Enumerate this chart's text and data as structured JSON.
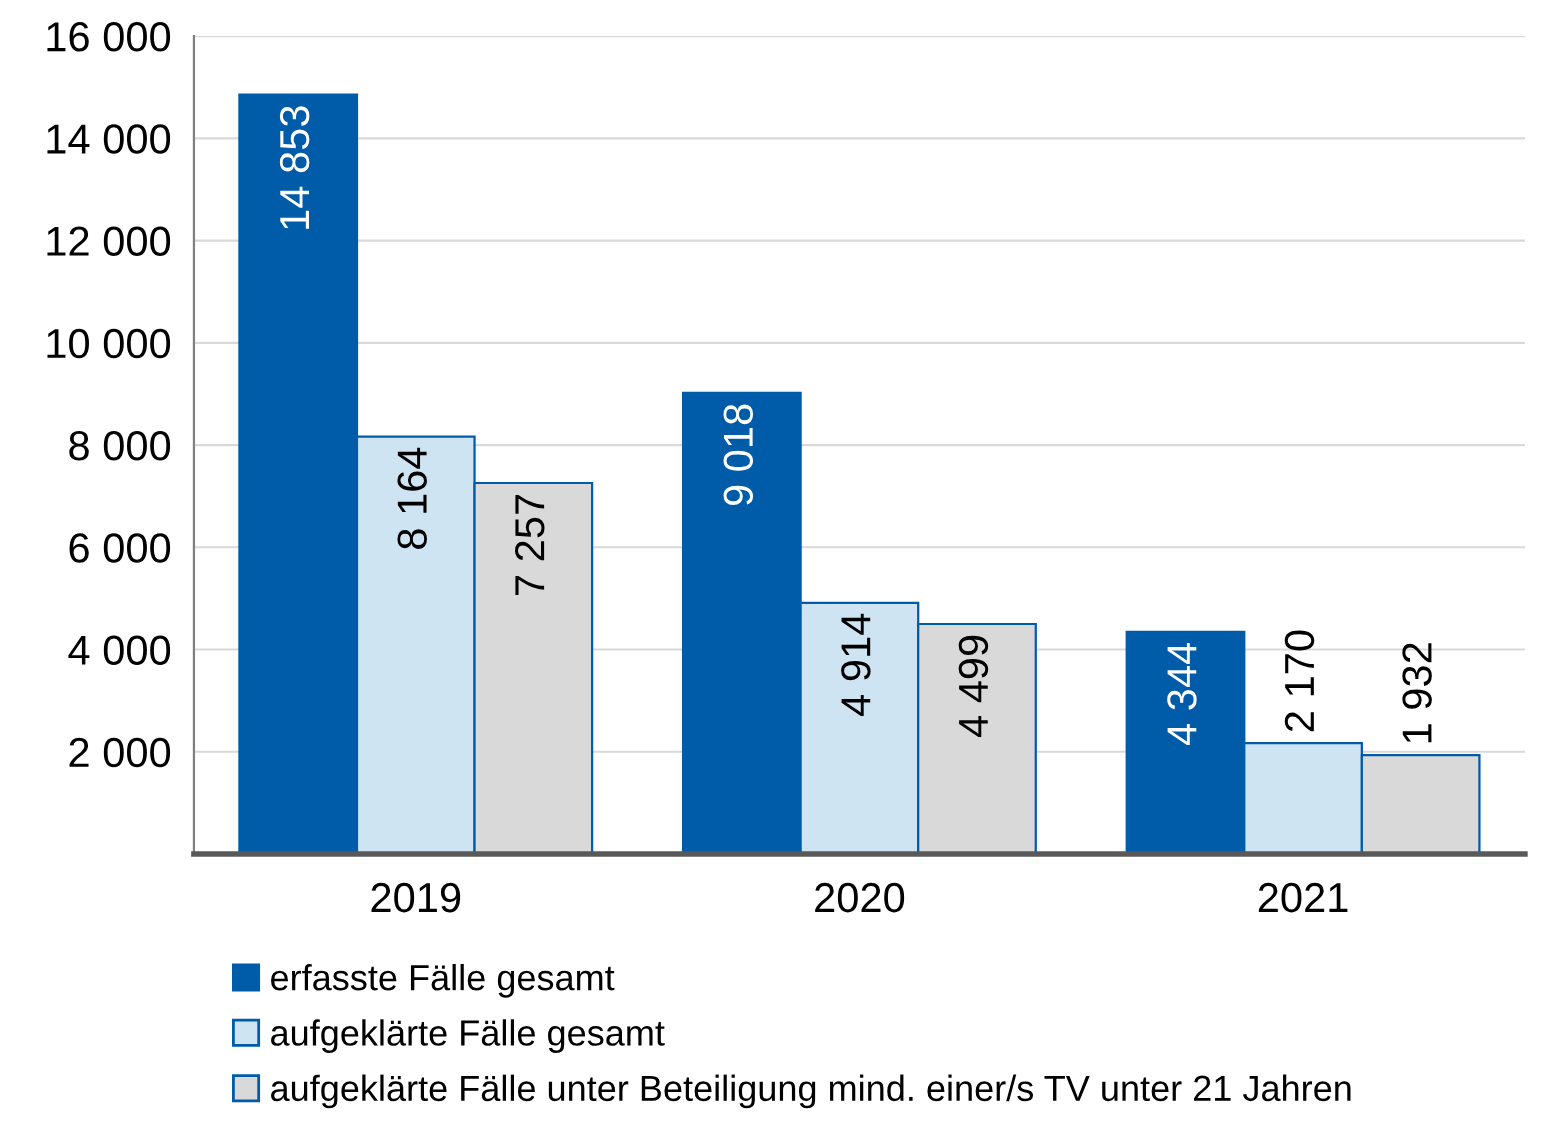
{
  "chart_data": {
    "type": "bar",
    "categories": [
      "2019",
      "2020",
      "2021"
    ],
    "series": [
      {
        "name": "erfasste Fälle gesamt",
        "color": "#005ca9",
        "values": [
          14853,
          9018,
          4344
        ],
        "value_labels": [
          "14 853",
          "9 018",
          "4 344"
        ]
      },
      {
        "name": "aufgeklärte Fälle gesamt",
        "color": "#cfe4f2",
        "values": [
          8164,
          4914,
          2170
        ],
        "value_labels": [
          "8 164",
          "4 914",
          "2 170"
        ]
      },
      {
        "name": "aufgeklärte Fälle unter Beteiligung mind. einer/s TV unter 21 Jahren",
        "color": "#d9d9d9",
        "values": [
          7257,
          4499,
          1932
        ],
        "value_labels": [
          "7 257",
          "4 499",
          "1 932"
        ]
      }
    ],
    "ylim": [
      0,
      16000
    ],
    "yticks": [
      {
        "value": 0,
        "label": null
      },
      {
        "value": 2000,
        "label": "2 000"
      },
      {
        "value": 4000,
        "label": "4 000"
      },
      {
        "value": 6000,
        "label": "6 000"
      },
      {
        "value": 8000,
        "label": "8 000"
      },
      {
        "value": 10000,
        "label": "10 000"
      },
      {
        "value": 12000,
        "label": "12 000"
      },
      {
        "value": 14000,
        "label": "14 000"
      },
      {
        "value": 16000,
        "label": "16 000"
      }
    ],
    "grid": "y",
    "legend": "bottom"
  }
}
